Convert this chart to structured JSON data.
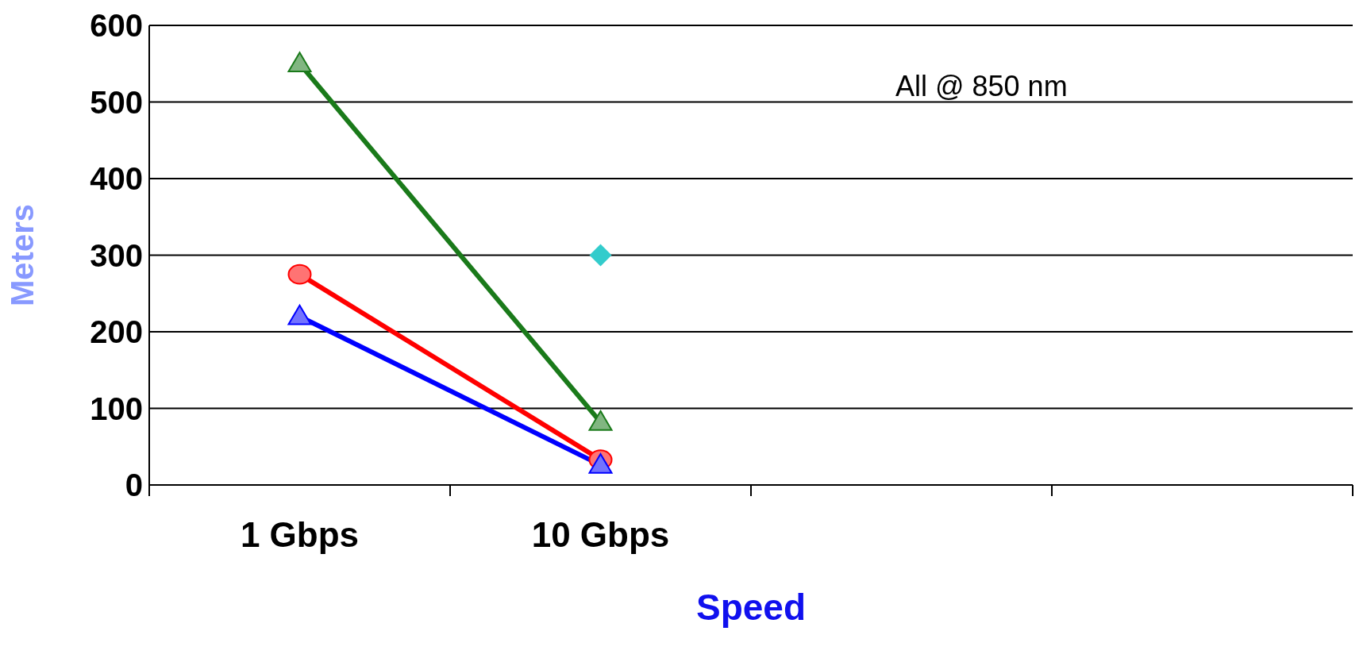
{
  "chart_data": {
    "type": "line",
    "xlabel": "Speed",
    "ylabel": "Meters",
    "categories": [
      "1 Gbps",
      "10 Gbps",
      null,
      null
    ],
    "ylim": [
      0,
      600
    ],
    "yticks": [
      0,
      100,
      200,
      300,
      400,
      500,
      600
    ],
    "grid": "y",
    "legend": false,
    "line_style": "solid",
    "annotations": [
      "All @ 850 nm"
    ],
    "series": [
      {
        "color": "#1a7a1a",
        "marker": "triangle",
        "values": [
          550,
          82,
          null,
          null
        ]
      },
      {
        "color": "#ff0000",
        "marker": "circle",
        "values": [
          275,
          33,
          null,
          null
        ]
      },
      {
        "color": "#0000ff",
        "marker": "triangle",
        "values": [
          220,
          26,
          null,
          null
        ]
      },
      {
        "color": "#33cccc",
        "marker": "diamond",
        "values": [
          null,
          300,
          null,
          null
        ]
      }
    ]
  }
}
